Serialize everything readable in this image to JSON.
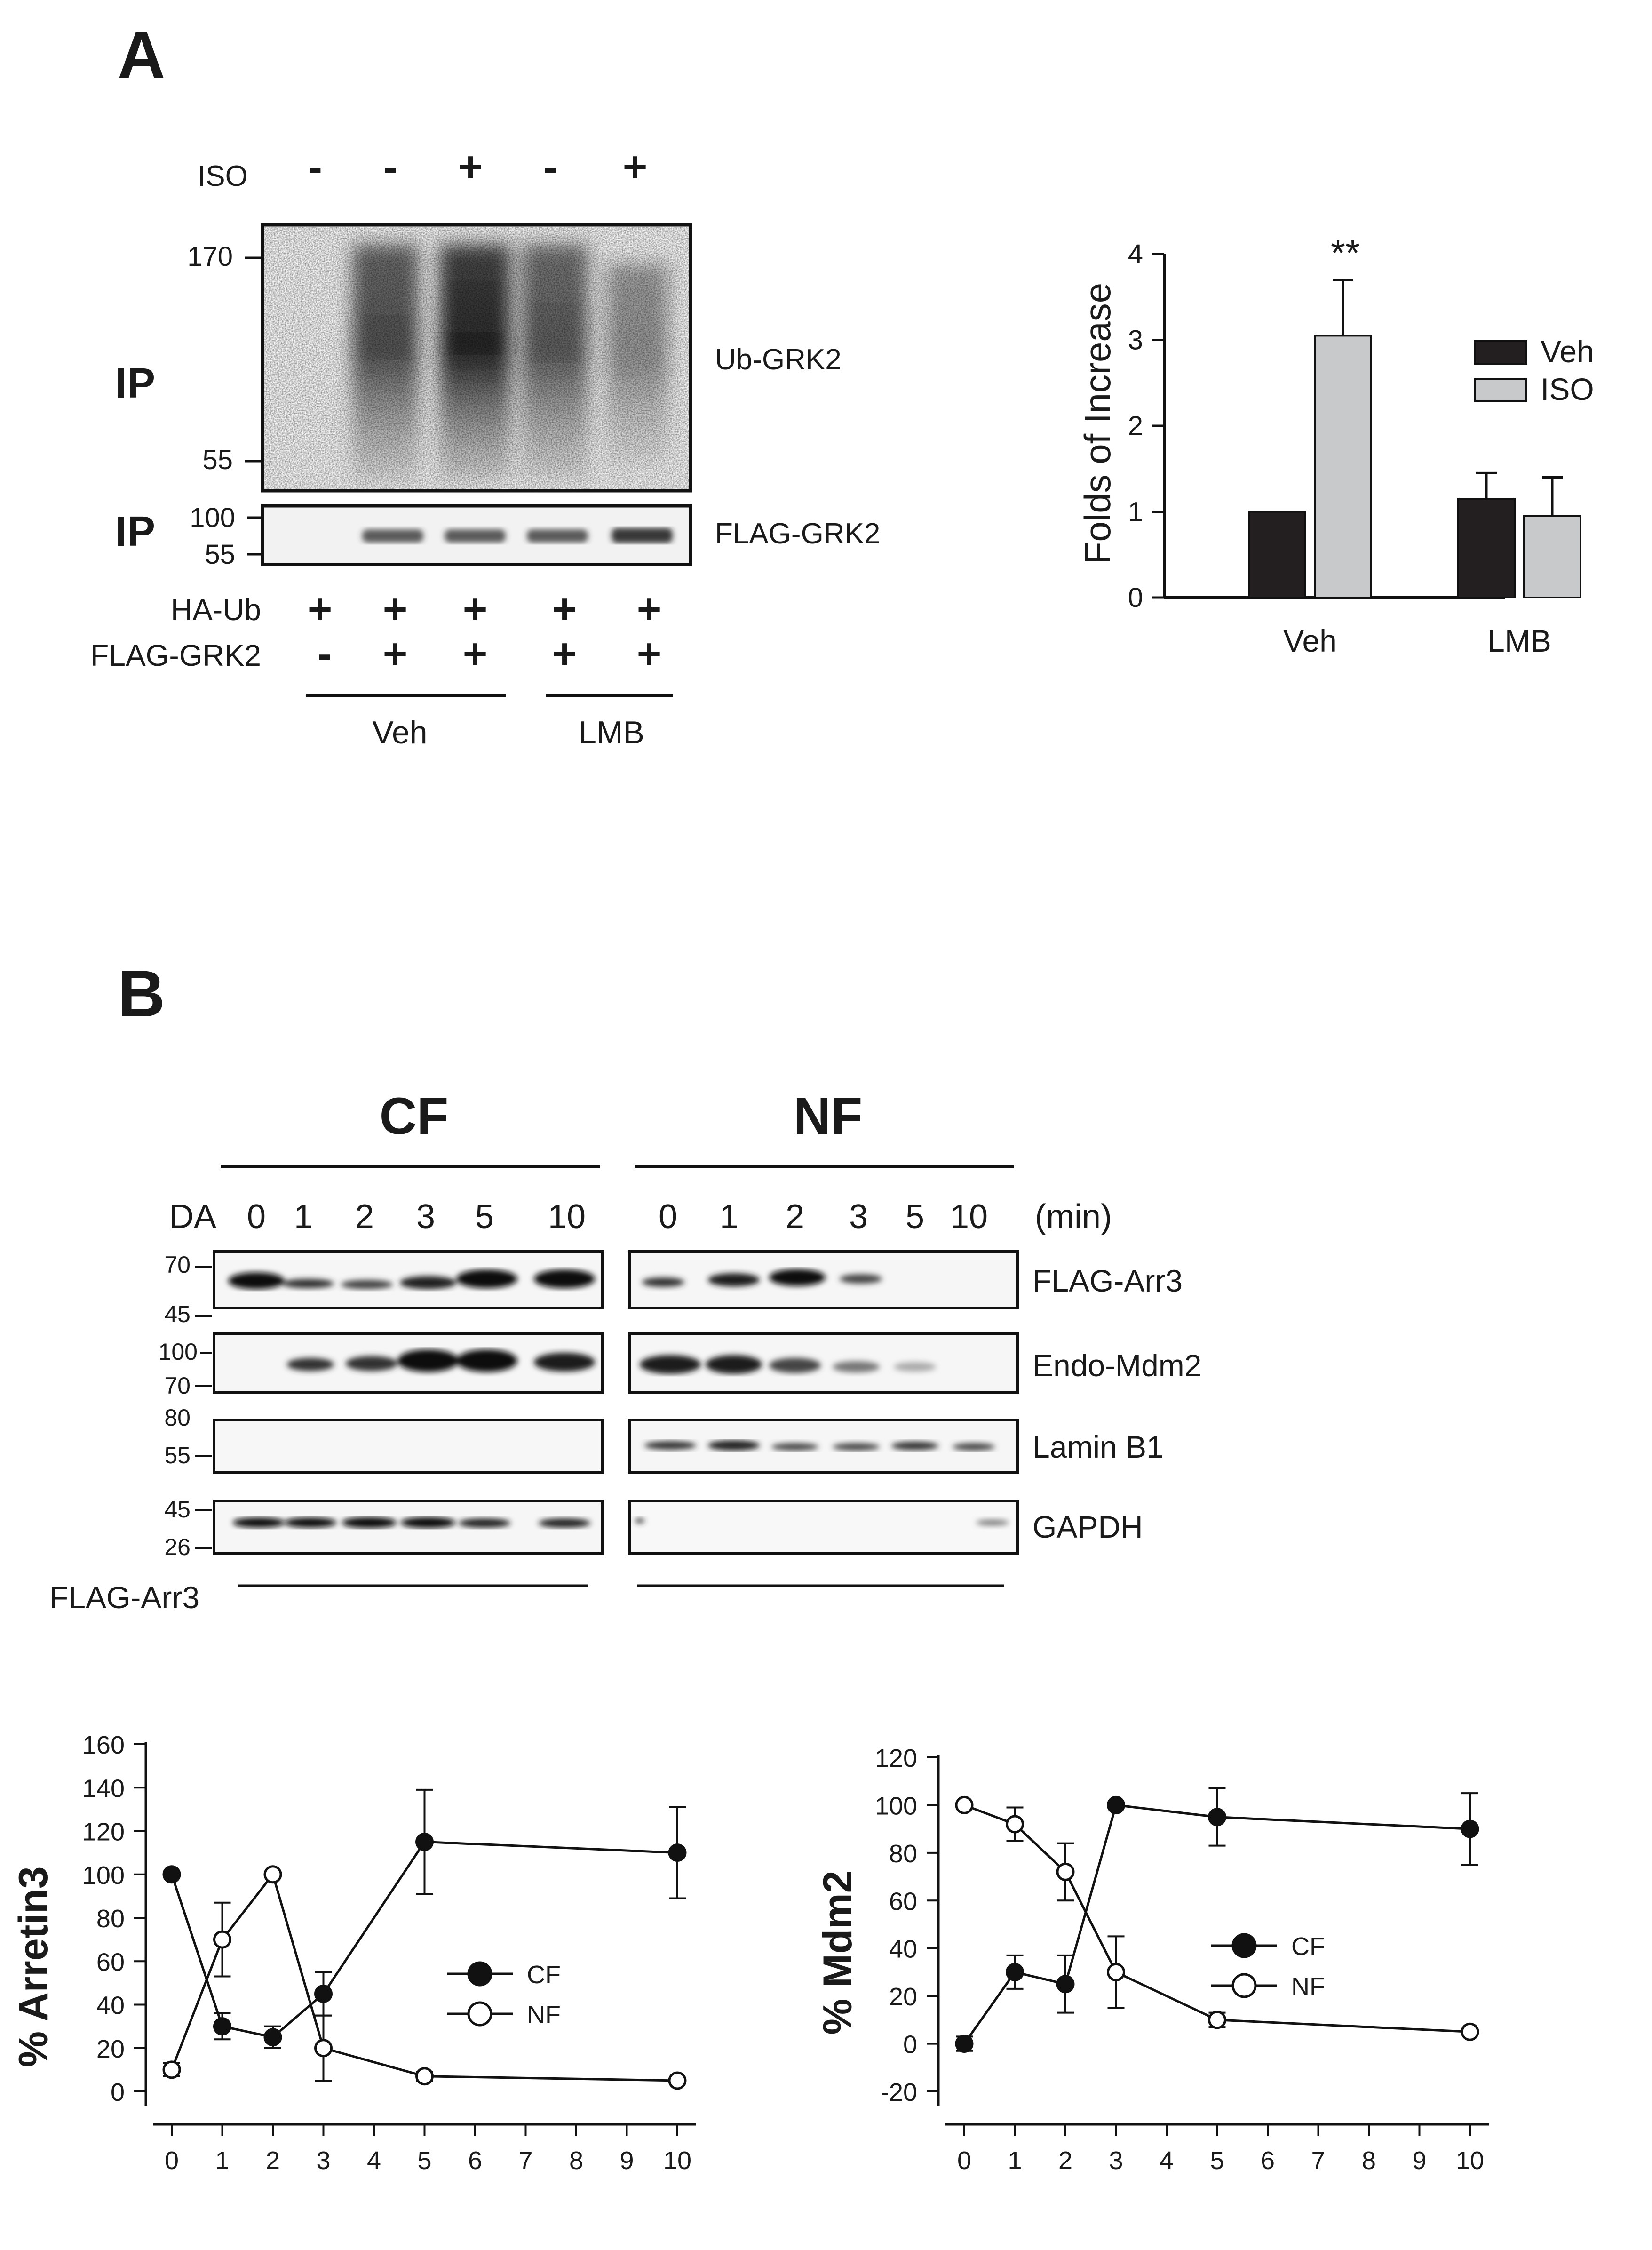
{
  "panel_a": {
    "label": "A",
    "iso_row_label": "ISO",
    "iso_signs": [
      "-",
      "-",
      "+",
      "-",
      "+"
    ],
    "ip_label_1": "IP",
    "ip_label_2": "IP",
    "mw_top": [
      "170",
      "55"
    ],
    "mw_bottom": [
      "100",
      "55"
    ],
    "blot_top_label": "Ub-GRK2",
    "blot_bottom_label": "FLAG-GRK2",
    "ha_ub_label": "HA-Ub",
    "ha_ub_signs": [
      "+",
      "+",
      "+",
      "+",
      "+"
    ],
    "flag_grk2_label": "FLAG-GRK2",
    "flag_grk2_signs": [
      "-",
      "+",
      "+",
      "+",
      "+"
    ],
    "group_veh": "Veh",
    "group_lmb": "LMB"
  },
  "panel_b": {
    "label": "B",
    "cf_label": "CF",
    "nf_label": "NF",
    "da_label": "DA",
    "cf_times": [
      "0",
      "1",
      "2",
      "3",
      "5",
      "10"
    ],
    "nf_times": [
      "0",
      "1",
      "2",
      "3",
      "5",
      "10"
    ],
    "min_label": "(min)",
    "row_labels": [
      "FLAG-Arr3",
      "Endo-Mdm2",
      "Lamin B1",
      "GAPDH"
    ],
    "mw": {
      "row1": [
        "70",
        "45"
      ],
      "row2": [
        "100",
        "70"
      ],
      "row3": [
        "80",
        "55"
      ],
      "row4": [
        "45",
        "26"
      ]
    },
    "bottom_label": "FLAG-Arr3"
  },
  "chart_data": [
    {
      "type": "bar",
      "categories": [
        "Veh",
        "LMB"
      ],
      "series": [
        {
          "name": "Veh",
          "values": [
            1.0,
            1.15
          ],
          "errors": [
            0,
            0.3
          ],
          "color": "#231f20"
        },
        {
          "name": "ISO",
          "values": [
            3.05,
            0.95
          ],
          "errors": [
            0.65,
            0.45
          ],
          "color": "#c8c9cb"
        }
      ],
      "ylabel": "Folds of Increase",
      "ylim": [
        0,
        4
      ],
      "yticks": [
        "0",
        "1",
        "2",
        "3",
        "4"
      ],
      "annotation": "**",
      "legend": "top-right"
    },
    {
      "type": "line",
      "x": [
        0,
        1,
        2,
        3,
        5,
        10
      ],
      "xticks": [
        "0",
        "1",
        "2",
        "3",
        "4",
        "5",
        "6",
        "7",
        "8",
        "9",
        "10"
      ],
      "series": [
        {
          "name": "CF",
          "values": [
            100,
            30,
            25,
            45,
            115,
            110
          ],
          "errors": [
            0,
            6,
            5,
            10,
            24,
            21
          ],
          "marker": "filled"
        },
        {
          "name": "NF",
          "values": [
            10,
            70,
            100,
            20,
            7,
            5
          ],
          "errors": [
            3,
            17,
            0,
            15,
            2,
            0
          ],
          "marker": "open"
        }
      ],
      "ylabel": "% Arretin3",
      "ylim": [
        0,
        160
      ],
      "yticks": [
        "0",
        "20",
        "40",
        "60",
        "80",
        "100",
        "120",
        "140",
        "160"
      ],
      "legend": "center-right"
    },
    {
      "type": "line",
      "x": [
        0,
        1,
        2,
        3,
        5,
        10
      ],
      "xticks": [
        "0",
        "1",
        "2",
        "3",
        "4",
        "5",
        "6",
        "7",
        "8",
        "9",
        "10"
      ],
      "series": [
        {
          "name": "CF",
          "values": [
            0,
            30,
            25,
            100,
            95,
            90
          ],
          "errors": [
            3,
            7,
            12,
            0,
            12,
            15
          ],
          "marker": "filled"
        },
        {
          "name": "NF",
          "values": [
            100,
            92,
            72,
            30,
            10,
            5
          ],
          "errors": [
            0,
            7,
            12,
            15,
            3,
            0
          ],
          "marker": "open"
        }
      ],
      "ylabel": "% Mdm2",
      "ylim": [
        -20,
        120
      ],
      "yticks": [
        "-20",
        "0",
        "20",
        "40",
        "60",
        "80",
        "100",
        "120"
      ],
      "legend": "center-right"
    }
  ]
}
